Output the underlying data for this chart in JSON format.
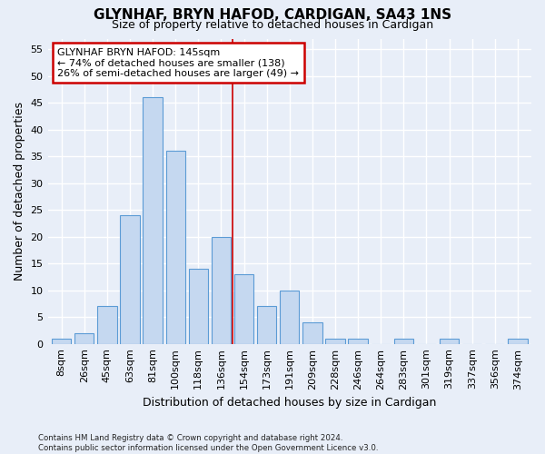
{
  "title": "GLYNHAF, BRYN HAFOD, CARDIGAN, SA43 1NS",
  "subtitle": "Size of property relative to detached houses in Cardigan",
  "xlabel": "Distribution of detached houses by size in Cardigan",
  "ylabel": "Number of detached properties",
  "bar_values": [
    1,
    2,
    7,
    24,
    46,
    36,
    14,
    20,
    13,
    7,
    10,
    4,
    1,
    1,
    0,
    1,
    0,
    1,
    0,
    0,
    1
  ],
  "bin_labels": [
    "8sqm",
    "26sqm",
    "45sqm",
    "63sqm",
    "81sqm",
    "100sqm",
    "118sqm",
    "136sqm",
    "154sqm",
    "173sqm",
    "191sqm",
    "209sqm",
    "228sqm",
    "246sqm",
    "264sqm",
    "283sqm",
    "301sqm",
    "319sqm",
    "337sqm",
    "356sqm",
    "374sqm"
  ],
  "bar_color": "#c5d8f0",
  "bar_edge_color": "#5b9bd5",
  "vline_x": 7.5,
  "vline_color": "#cc0000",
  "ylim": [
    0,
    57
  ],
  "yticks": [
    0,
    5,
    10,
    15,
    20,
    25,
    30,
    35,
    40,
    45,
    50,
    55
  ],
  "annotation_text": "GLYNHAF BRYN HAFOD: 145sqm\n← 74% of detached houses are smaller (138)\n26% of semi-detached houses are larger (49) →",
  "annotation_box_color": "#ffffff",
  "annotation_box_edge": "#cc0000",
  "footer_text": "Contains HM Land Registry data © Crown copyright and database right 2024.\nContains public sector information licensed under the Open Government Licence v3.0.",
  "background_color": "#e8eef8",
  "grid_color": "#ffffff",
  "title_fontsize": 11,
  "subtitle_fontsize": 9,
  "ylabel_fontsize": 9,
  "xlabel_fontsize": 9,
  "tick_fontsize": 8,
  "annotation_fontsize": 8
}
